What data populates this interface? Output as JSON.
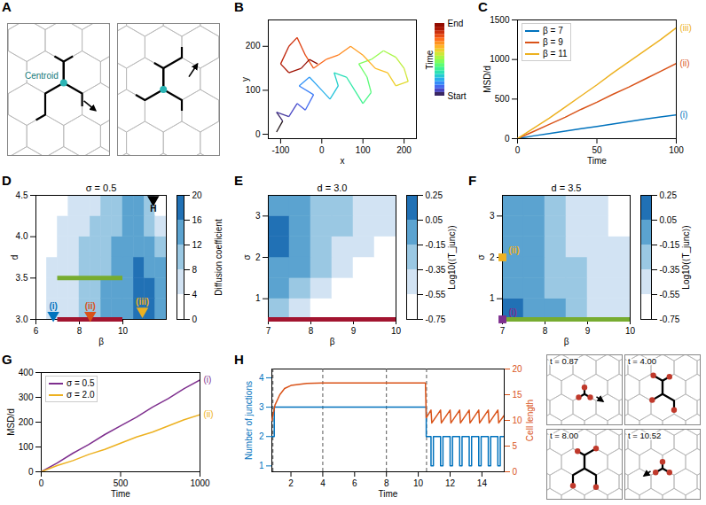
{
  "chart_data": [
    {
      "label": "B",
      "type": "trajectory",
      "xlabel": "x",
      "ylabel": "y",
      "color": "turbo",
      "x": [
        -110,
        -95,
        -110,
        -80,
        -60,
        -40,
        -20,
        -55,
        -30,
        0,
        20,
        40,
        30,
        60,
        80,
        100,
        120,
        110,
        90,
        120,
        150,
        180,
        200,
        210,
        180,
        160,
        130,
        100,
        70,
        40,
        10,
        -20,
        -40,
        -60,
        -80,
        -100,
        -80,
        -50,
        -30,
        -10
      ],
      "y": [
        5,
        30,
        50,
        40,
        70,
        55,
        90,
        110,
        130,
        100,
        80,
        110,
        140,
        130,
        100,
        70,
        95,
        130,
        160,
        170,
        190,
        175,
        150,
        120,
        110,
        140,
        150,
        180,
        200,
        180,
        170,
        150,
        180,
        220,
        200,
        160,
        140,
        150,
        170,
        160
      ],
      "xlim": [
        -130,
        230
      ],
      "xticks": [
        -100,
        0,
        100,
        200
      ],
      "ylim": [
        -10,
        260
      ],
      "yticks": [
        0,
        100,
        200
      ],
      "colorbar": {
        "label": "Time",
        "top_label": "End",
        "bottom_label": "Start"
      }
    },
    {
      "label": "C",
      "type": "line",
      "xlabel": "Time",
      "ylabel": "MSD/d",
      "legend": "top-left",
      "x": [
        0,
        10,
        20,
        30,
        40,
        50,
        60,
        70,
        80,
        90,
        100
      ],
      "series": [
        {
          "name": "β = 7",
          "color": "#0072BD",
          "annotation": "(i)",
          "values": [
            0,
            35,
            65,
            95,
            125,
            155,
            185,
            215,
            245,
            275,
            300
          ]
        },
        {
          "name": "β = 9",
          "color": "#D95319",
          "annotation": "(ii)",
          "values": [
            0,
            90,
            180,
            270,
            370,
            460,
            560,
            650,
            750,
            850,
            950
          ]
        },
        {
          "name": "β = 11",
          "color": "#EDB120",
          "annotation": "(iii)",
          "values": [
            0,
            130,
            260,
            400,
            540,
            680,
            830,
            970,
            1110,
            1250,
            1400
          ]
        }
      ],
      "xlim": [
        0,
        100
      ],
      "xticks": [
        0,
        50,
        100
      ],
      "ylim": [
        0,
        1500
      ],
      "yticks": [
        0,
        500,
        1000,
        1500
      ]
    },
    {
      "label": "D",
      "type": "heatmap",
      "title": "σ = 0.5",
      "xlabel": "β",
      "ylabel": "d",
      "x_bins": [
        6,
        6.5,
        7,
        7.5,
        8,
        8.5,
        9,
        9.5,
        10,
        10.5,
        11,
        11.5,
        12
      ],
      "y_bins": [
        3,
        3.25,
        3.5,
        3.75,
        4,
        4.25,
        4.5
      ],
      "z": [
        [
          3,
          5,
          6,
          7,
          9,
          11,
          12,
          14,
          15,
          17,
          17,
          15
        ],
        [
          2,
          5,
          6,
          7,
          9,
          10,
          12,
          13,
          15,
          17,
          17,
          14
        ],
        [
          2,
          4,
          5,
          7,
          8,
          10,
          11,
          13,
          14,
          16,
          15,
          12
        ],
        [
          1,
          3,
          5,
          6,
          8,
          9,
          11,
          12,
          14,
          15,
          13,
          9
        ],
        [
          1,
          2,
          4,
          5,
          7,
          8,
          10,
          11,
          13,
          14,
          11,
          6
        ],
        [
          0,
          1,
          3,
          4,
          6,
          7,
          9,
          10,
          12,
          12,
          8,
          3
        ]
      ],
      "xlim": [
        6,
        12
      ],
      "xticks": [
        6,
        8,
        10
      ],
      "ylim": [
        3,
        4.5
      ],
      "yticks": [
        {
          "value": 3,
          "label": "3.0"
        },
        {
          "value": 3.5,
          "label": "3.5"
        },
        {
          "value": 4,
          "label": "4.0"
        },
        {
          "value": 4.5,
          "label": "4.5"
        }
      ],
      "colorbar": {
        "label": "Diffusion coefficient",
        "lim": [
          0,
          20
        ],
        "ticks": [
          0,
          4,
          8,
          12,
          16,
          20
        ],
        "colors": [
          "#ffffff",
          "#d2e3f3",
          "#9ac8e3",
          "#5ba3d0",
          "#2171b5"
        ]
      },
      "markers": [
        {
          "label": "H",
          "x": 11.4,
          "y": 4.45,
          "color": "#000000",
          "marker": "triangle-down"
        },
        {
          "label": "(i)",
          "x": 6.8,
          "y": 3.05,
          "color": "#0072BD",
          "marker": "triangle-down"
        },
        {
          "label": "(ii)",
          "x": 8.5,
          "y": 3.05,
          "color": "#D95319",
          "marker": "triangle-down"
        },
        {
          "label": "(iii)",
          "x": 10.9,
          "y": 3.1,
          "color": "#EDB120",
          "marker": "triangle-down"
        }
      ],
      "bars": [
        {
          "y": 3.5,
          "x": [
            7,
            10
          ],
          "color": "#77AC30"
        },
        {
          "y": 3.0,
          "x": [
            7,
            10
          ],
          "color": "#A2142F"
        }
      ]
    },
    {
      "label": "E",
      "type": "heatmap",
      "title": "d = 3.0",
      "xlabel": "β",
      "ylabel": "σ",
      "x_bins": [
        7,
        7.5,
        8,
        8.5,
        9,
        9.5,
        10
      ],
      "y_bins": [
        0.5,
        1,
        1.5,
        2,
        2.5,
        3,
        3.5
      ],
      "z": [
        [
          -0.25,
          -0.45,
          -0.6,
          -0.65,
          -0.7,
          -0.7
        ],
        [
          -0.1,
          -0.3,
          -0.5,
          -0.6,
          -0.65,
          -0.7
        ],
        [
          0.0,
          -0.15,
          -0.35,
          -0.5,
          -0.6,
          -0.65
        ],
        [
          0.1,
          -0.05,
          -0.25,
          -0.4,
          -0.5,
          -0.6
        ],
        [
          0.1,
          -0.05,
          -0.2,
          -0.35,
          -0.45,
          -0.55
        ],
        [
          0.0,
          -0.1,
          -0.2,
          -0.35,
          -0.45,
          -0.5
        ]
      ],
      "xlim": [
        7,
        10
      ],
      "xticks": [
        7,
        8,
        9,
        10
      ],
      "ylim": [
        0.5,
        3.5
      ],
      "yticks": [
        1,
        2,
        3
      ],
      "colorbar": {
        "label": "Log10(⟨T_junc⟩)",
        "lim": [
          -0.75,
          0.25
        ],
        "ticks": [
          -0.75,
          -0.55,
          -0.35,
          -0.15,
          0.05,
          0.25
        ],
        "colors": [
          "#ffffff",
          "#d2e3f3",
          "#9ac8e3",
          "#5ba3d0",
          "#2171b5"
        ]
      },
      "markers": [],
      "bars": [
        {
          "y": 0.5,
          "x": [
            7,
            10
          ],
          "color": "#A2142F"
        }
      ]
    },
    {
      "label": "F",
      "type": "heatmap",
      "title": "d = 3.5",
      "xlabel": "β",
      "ylabel": "σ",
      "x_bins": [
        7,
        7.5,
        8,
        8.5,
        9,
        9.5,
        10
      ],
      "y_bins": [
        0.5,
        1,
        1.5,
        2,
        2.5,
        3,
        3.5
      ],
      "z": [
        [
          0.1,
          0.0,
          -0.15,
          -0.3,
          -0.45,
          -0.55
        ],
        [
          0.0,
          -0.1,
          -0.2,
          -0.35,
          -0.45,
          -0.55
        ],
        [
          -0.05,
          -0.1,
          -0.25,
          -0.35,
          -0.45,
          -0.55
        ],
        [
          -0.1,
          -0.1,
          -0.25,
          -0.4,
          -0.5,
          -0.55
        ],
        [
          -0.1,
          -0.15,
          -0.3,
          -0.4,
          -0.5,
          -0.6
        ],
        [
          -0.1,
          -0.15,
          -0.3,
          -0.45,
          -0.5,
          -0.6
        ]
      ],
      "xlim": [
        7,
        10
      ],
      "xticks": [
        7,
        8,
        9,
        10
      ],
      "ylim": [
        0.5,
        3.5
      ],
      "yticks": [
        1,
        2,
        3
      ],
      "colorbar": {
        "label": "Log10(⟨T_junc⟩)",
        "lim": [
          -0.75,
          0.25
        ],
        "ticks": [
          -0.75,
          -0.55,
          -0.35,
          -0.15,
          0.05,
          0.25
        ],
        "colors": [
          "#ffffff",
          "#d2e3f3",
          "#9ac8e3",
          "#5ba3d0",
          "#2171b5"
        ]
      },
      "markers": [
        {
          "label": "(i)",
          "x": 7,
          "y": 0.5,
          "color": "#7E2F8E",
          "marker": "square"
        },
        {
          "label": "(ii)",
          "x": 7,
          "y": 2,
          "color": "#EDB120",
          "marker": "square"
        }
      ],
      "bars": [
        {
          "y": 0.5,
          "x": [
            7,
            10
          ],
          "color": "#77AC30"
        }
      ]
    },
    {
      "label": "G",
      "type": "line",
      "xlabel": "Time",
      "ylabel": "MSD/d",
      "legend": "top-left",
      "x": [
        0,
        100,
        200,
        300,
        400,
        500,
        600,
        700,
        800,
        900,
        1000
      ],
      "series": [
        {
          "name": "σ = 0.5",
          "color": "#7E2F8E",
          "annotation": "(i)",
          "values": [
            0,
            35,
            75,
            110,
            150,
            185,
            220,
            260,
            295,
            335,
            370
          ]
        },
        {
          "name": "σ = 2.0",
          "color": "#EDB120",
          "annotation": "(ii)",
          "values": [
            0,
            25,
            45,
            70,
            90,
            115,
            140,
            160,
            185,
            210,
            230
          ]
        }
      ],
      "xlim": [
        0,
        1000
      ],
      "xticks": [
        0,
        500,
        1000
      ],
      "ylim": [
        0,
        400
      ],
      "yticks": [
        0,
        100,
        200,
        300,
        400
      ]
    },
    {
      "label": "H",
      "type": "line",
      "xlabel": "Time",
      "xlim": [
        0.8,
        15.4
      ],
      "xticks": [
        2,
        4,
        6,
        8,
        10,
        12,
        14
      ],
      "ylim": [
        0.8,
        4.3
      ],
      "yticks": [
        1,
        2,
        3,
        4
      ],
      "y2lim": [
        0,
        20
      ],
      "y2ticks": [
        0,
        5,
        10,
        15,
        20
      ],
      "series": [
        {
          "name": "Number of junctions",
          "color": "#0072BD",
          "type": "step",
          "x": [
            0.8,
            0.95,
            10.5,
            10.8,
            10.95,
            11.4,
            11.55,
            12.0,
            12.15,
            12.6,
            12.75,
            13.2,
            13.35,
            13.8,
            13.95,
            14.4,
            14.55,
            15.0,
            15.15,
            15.4
          ],
          "values": [
            2,
            3,
            2,
            1,
            2,
            1,
            2,
            1,
            2,
            1,
            2,
            1,
            2,
            1,
            2,
            1,
            2,
            1,
            2,
            2
          ]
        },
        {
          "name": "Cell length",
          "color": "#D95319",
          "type": "line",
          "axis": "y2",
          "x": [
            0.8,
            1.0,
            1.3,
            1.6,
            2.0,
            3.0,
            4.0,
            10.45,
            10.5,
            10.8,
            10.85,
            11.4,
            11.45,
            12.0,
            12.05,
            12.6,
            12.65,
            13.2,
            13.25,
            13.8,
            13.85,
            14.4,
            14.45,
            15.0,
            15.05,
            15.4
          ],
          "values": [
            10,
            13,
            15,
            16.2,
            16.8,
            17.2,
            17.3,
            17.3,
            10.5,
            12,
            9.5,
            12,
            9.5,
            12,
            9.5,
            12,
            9.5,
            12,
            9.5,
            12,
            9.5,
            12,
            9.5,
            12,
            9.5,
            11
          ]
        }
      ],
      "snapshots": [
        {
          "t": 0.87,
          "label": "t = 0.87"
        },
        {
          "t": 4,
          "label": "t = 4.00"
        },
        {
          "t": 8,
          "label": "t = 8.00"
        },
        {
          "t": 10.52,
          "label": "t = 10.52"
        }
      ]
    }
  ],
  "diagrams": {
    "A": {
      "label": "A",
      "annotation": "Centroid"
    }
  }
}
